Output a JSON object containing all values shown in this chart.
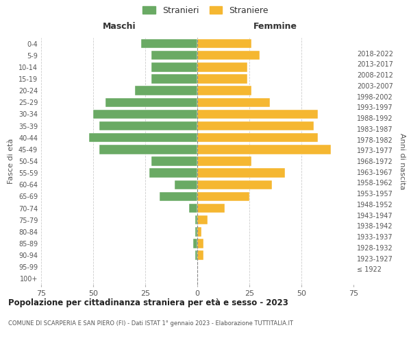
{
  "age_groups": [
    "100+",
    "95-99",
    "90-94",
    "85-89",
    "80-84",
    "75-79",
    "70-74",
    "65-69",
    "60-64",
    "55-59",
    "50-54",
    "45-49",
    "40-44",
    "35-39",
    "30-34",
    "25-29",
    "20-24",
    "15-19",
    "10-14",
    "5-9",
    "0-4"
  ],
  "birth_years": [
    "≤ 1922",
    "1923-1927",
    "1928-1932",
    "1933-1937",
    "1938-1942",
    "1943-1947",
    "1948-1952",
    "1953-1957",
    "1958-1962",
    "1963-1967",
    "1968-1972",
    "1973-1977",
    "1978-1982",
    "1983-1987",
    "1988-1992",
    "1993-1997",
    "1998-2002",
    "2003-2007",
    "2008-2012",
    "2013-2017",
    "2018-2022"
  ],
  "males": [
    0,
    0,
    1,
    2,
    1,
    1,
    4,
    18,
    11,
    23,
    22,
    47,
    52,
    47,
    50,
    44,
    30,
    22,
    22,
    22,
    27
  ],
  "females": [
    0,
    0,
    3,
    3,
    2,
    5,
    13,
    25,
    36,
    42,
    26,
    64,
    58,
    56,
    58,
    35,
    26,
    24,
    24,
    30,
    26
  ],
  "male_color": "#6aaa64",
  "female_color": "#f5b731",
  "title": "Popolazione per cittadinanza straniera per età e sesso - 2023",
  "subtitle": "COMUNE DI SCARPERIA E SAN PIERO (FI) - Dati ISTAT 1° gennaio 2023 - Elaborazione TUTTITALIA.IT",
  "xlim": 75,
  "ylabel_left": "Fasce di età",
  "ylabel_right": "Anni di nascita",
  "header_left": "Maschi",
  "header_right": "Femmine",
  "legend_stranieri": "Stranieri",
  "legend_straniere": "Straniere",
  "bg_color": "#ffffff",
  "grid_color": "#cccccc"
}
